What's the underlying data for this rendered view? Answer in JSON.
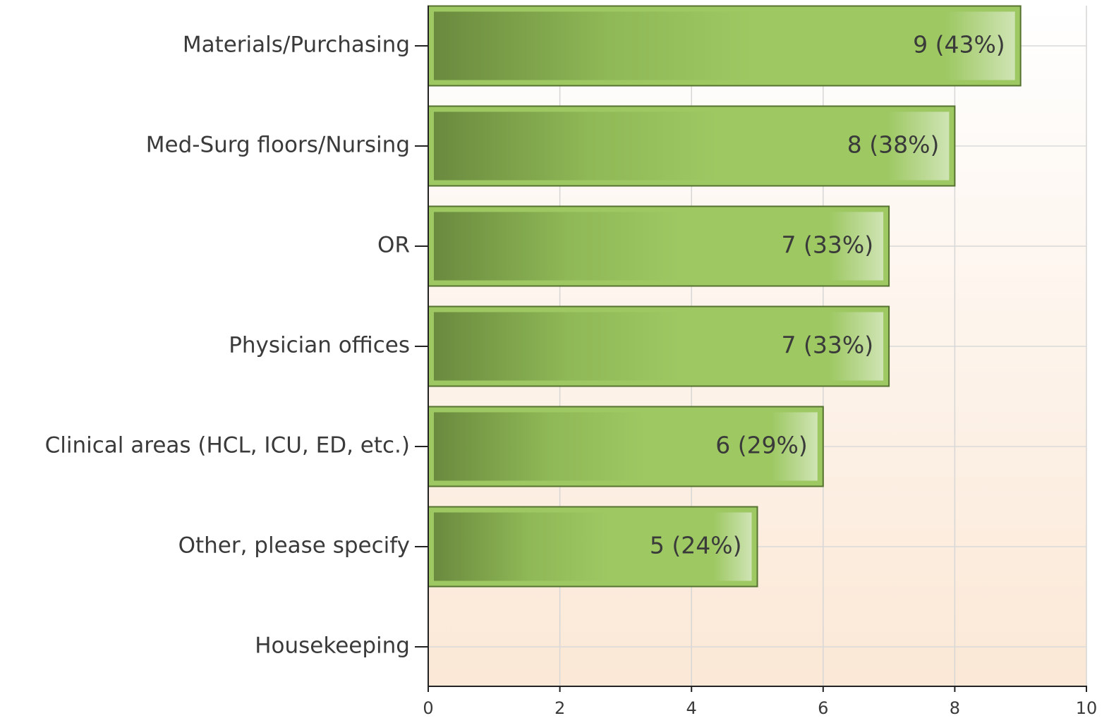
{
  "chart_data": {
    "type": "hbar",
    "categories": [
      "Materials/Purchasing",
      "Med-Surg floors/Nursing",
      "OR",
      "Physician offices",
      "Clinical areas (HCL, ICU, ED, etc.)",
      "Other, please specify",
      "Housekeeping"
    ],
    "values": [
      9,
      8,
      7,
      7,
      6,
      5,
      0
    ],
    "value_labels": [
      "9 (43%)",
      "8 (38%)",
      "7 (33%)",
      "7 (33%)",
      "6 (29%)",
      "5 (24%)",
      null
    ],
    "color": "#9dc862",
    "xlim": [
      0,
      10
    ],
    "xticks": [
      0,
      2,
      4,
      6,
      8,
      10
    ],
    "grid": true
  }
}
